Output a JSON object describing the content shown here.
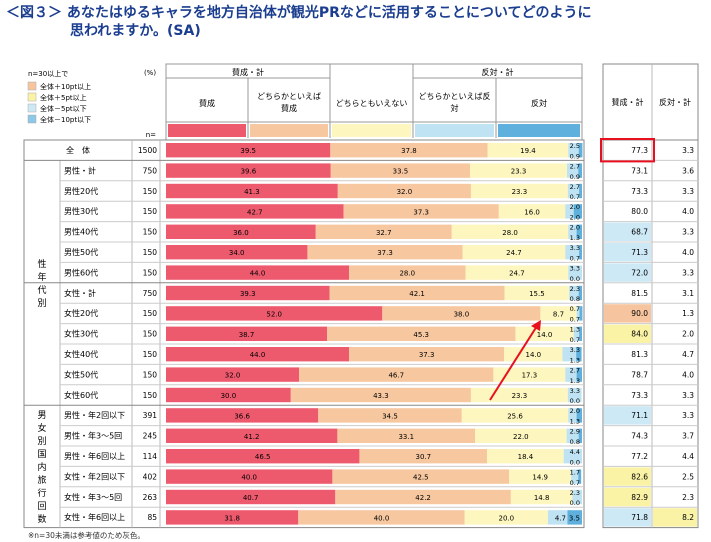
{
  "title": {
    "line1": "＜図３＞ あなたはゆるキャラを地方自治体が観光PRなどに活用することについてどのように",
    "line2": "思われますか。(SA)"
  },
  "legend": {
    "header": "n=30以上で",
    "items": [
      {
        "label": "全体＋10pt以上",
        "color": "#f7c4a0"
      },
      {
        "label": "全体＋5pt以上",
        "color": "#faf3a6"
      },
      {
        "label": "全体－5pt以下",
        "color": "#cde9f6"
      },
      {
        "label": "全体－10pt以下",
        "color": "#8dc8e8"
      }
    ]
  },
  "pct_label": "(%)",
  "n_label": "n=",
  "header": {
    "agree_group": "賛成・計",
    "against_group": "反対・計",
    "cols": [
      "賛成",
      "どちらかといえば賛成",
      "どちらともいえない",
      "どちらかといえば反対",
      "反対"
    ],
    "right_agree": "賛成・計",
    "right_against": "反対・計"
  },
  "group_labels": {
    "age": "性年代別",
    "travel": "男女別国内旅行回数"
  },
  "footnote": "※n=30未満は参考値のため灰色。",
  "chart_data": {
    "type": "bar",
    "stacked": true,
    "orientation": "horizontal",
    "series_names": [
      "賛成",
      "どちらかといえば賛成",
      "どちらともいえない",
      "どちらかといえば反対",
      "反対"
    ],
    "series_colors": [
      "#ee5a6d",
      "#f7c7a0",
      "#fdf6bf",
      "#bfe3f2",
      "#5fb0dc"
    ],
    "xlim": [
      0,
      100
    ],
    "rows": [
      {
        "label": "全　体",
        "n": "1500",
        "values": [
          39.5,
          37.8,
          19.4,
          2.5,
          0.9
        ],
        "agree": "77.3",
        "against": "3.3",
        "agree_hl": "none",
        "against_hl": "none",
        "total": true
      },
      {
        "label": "男性・計",
        "n": "750",
        "values": [
          39.6,
          33.5,
          23.3,
          2.7,
          0.9
        ],
        "agree": "73.1",
        "against": "3.6",
        "agree_hl": "none",
        "against_hl": "none"
      },
      {
        "label": "男性20代",
        "n": "150",
        "values": [
          41.3,
          32.0,
          23.3,
          2.7,
          0.7
        ],
        "agree": "73.3",
        "against": "3.3",
        "agree_hl": "none",
        "against_hl": "none"
      },
      {
        "label": "男性30代",
        "n": "150",
        "values": [
          42.7,
          37.3,
          16.0,
          2.0,
          2.0
        ],
        "agree": "80.0",
        "against": "4.0",
        "agree_hl": "none",
        "against_hl": "none"
      },
      {
        "label": "男性40代",
        "n": "150",
        "values": [
          36.0,
          32.7,
          28.0,
          2.0,
          1.3
        ],
        "agree": "68.7",
        "against": "3.3",
        "agree_hl": "lightblue",
        "against_hl": "none"
      },
      {
        "label": "男性50代",
        "n": "150",
        "values": [
          34.0,
          37.3,
          24.7,
          3.3,
          0.7
        ],
        "agree": "71.3",
        "against": "4.0",
        "agree_hl": "lightblue",
        "against_hl": "none"
      },
      {
        "label": "男性60代",
        "n": "150",
        "values": [
          44.0,
          28.0,
          24.7,
          3.3,
          0.0
        ],
        "agree": "72.0",
        "against": "3.3",
        "agree_hl": "lightblue",
        "against_hl": "none"
      },
      {
        "label": "女性・計",
        "n": "750",
        "values": [
          39.3,
          42.1,
          15.5,
          2.3,
          0.8
        ],
        "agree": "81.5",
        "against": "3.1",
        "agree_hl": "none",
        "against_hl": "none"
      },
      {
        "label": "女性20代",
        "n": "150",
        "values": [
          52.0,
          38.0,
          8.7,
          0.7,
          0.7
        ],
        "agree": "90.0",
        "against": "1.3",
        "agree_hl": "orange",
        "against_hl": "none"
      },
      {
        "label": "女性30代",
        "n": "150",
        "values": [
          38.7,
          45.3,
          14.0,
          1.3,
          0.7
        ],
        "agree": "84.0",
        "against": "2.0",
        "agree_hl": "yellow",
        "against_hl": "none"
      },
      {
        "label": "女性40代",
        "n": "150",
        "values": [
          44.0,
          37.3,
          14.0,
          3.3,
          1.3
        ],
        "agree": "81.3",
        "against": "4.7",
        "agree_hl": "none",
        "against_hl": "none"
      },
      {
        "label": "女性50代",
        "n": "150",
        "values": [
          32.0,
          46.7,
          17.3,
          2.7,
          1.3
        ],
        "agree": "78.7",
        "against": "4.0",
        "agree_hl": "none",
        "against_hl": "none"
      },
      {
        "label": "女性60代",
        "n": "150",
        "values": [
          30.0,
          43.3,
          23.3,
          3.3,
          0.0
        ],
        "agree": "73.3",
        "against": "3.3",
        "agree_hl": "none",
        "against_hl": "none"
      },
      {
        "label": "男性・年2回以下",
        "n": "391",
        "values": [
          36.6,
          34.5,
          25.6,
          2.0,
          1.3
        ],
        "agree": "71.1",
        "against": "3.3",
        "agree_hl": "lightblue",
        "against_hl": "none"
      },
      {
        "label": "男性・年3～5回",
        "n": "245",
        "values": [
          41.2,
          33.1,
          22.0,
          2.9,
          0.8
        ],
        "agree": "74.3",
        "against": "3.7",
        "agree_hl": "none",
        "against_hl": "none"
      },
      {
        "label": "男性・年6回以上",
        "n": "114",
        "values": [
          46.5,
          30.7,
          18.4,
          4.4,
          0.0
        ],
        "agree": "77.2",
        "against": "4.4",
        "agree_hl": "none",
        "against_hl": "none"
      },
      {
        "label": "女性・年2回以下",
        "n": "402",
        "values": [
          40.0,
          42.5,
          14.9,
          1.7,
          0.7
        ],
        "agree": "82.6",
        "against": "2.5",
        "agree_hl": "yellow",
        "against_hl": "none"
      },
      {
        "label": "女性・年3～5回",
        "n": "263",
        "values": [
          40.7,
          42.2,
          14.8,
          2.3,
          0.0
        ],
        "agree": "82.9",
        "against": "2.3",
        "agree_hl": "yellow",
        "against_hl": "none"
      },
      {
        "label": "女性・年6回以上",
        "n": "85",
        "values": [
          31.8,
          40.0,
          20.0,
          4.7,
          3.5
        ],
        "agree": "71.8",
        "against": "8.2",
        "agree_hl": "lightblue",
        "against_hl": "yellow"
      }
    ]
  }
}
